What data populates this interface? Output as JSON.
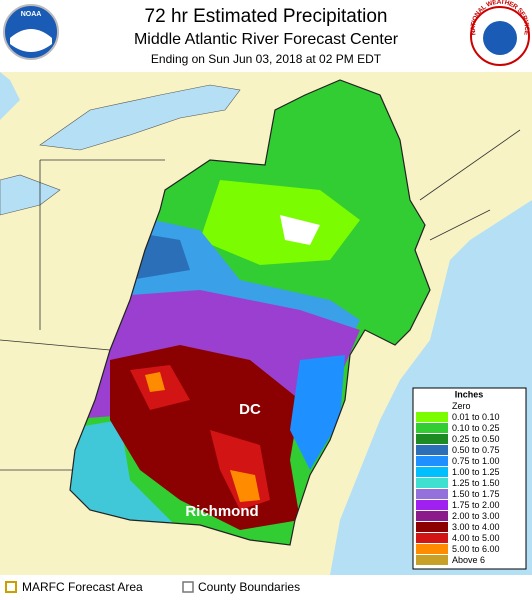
{
  "header": {
    "title": "72 hr Estimated Precipitation",
    "subtitle": "Middle Atlantic River Forecast Center",
    "period": "Ending on Sun Jun 03, 2018 at 02 PM EDT"
  },
  "logos": {
    "left": "NOAA",
    "right": "NATIONAL WEATHER SERVICE"
  },
  "map": {
    "labels": [
      "DC",
      "Richmond"
    ]
  },
  "legend": {
    "title": "Inches",
    "entries": [
      {
        "label": "Zero",
        "color": "#ffffff"
      },
      {
        "label": "0.01 to 0.10",
        "color": "#7cfc00"
      },
      {
        "label": "0.10 to 0.25",
        "color": "#32cd32"
      },
      {
        "label": "0.25 to 0.50",
        "color": "#1e8b22"
      },
      {
        "label": "0.50 to 0.75",
        "color": "#2a6fb8"
      },
      {
        "label": "0.75 to 1.00",
        "color": "#1e90ff"
      },
      {
        "label": "1.00 to 1.25",
        "color": "#00bfff"
      },
      {
        "label": "1.25 to 1.50",
        "color": "#40e0d0"
      },
      {
        "label": "1.50 to 1.75",
        "color": "#9370db"
      },
      {
        "label": "1.75 to 2.00",
        "color": "#a020f0"
      },
      {
        "label": "2.00 to 3.00",
        "color": "#8b1a8b"
      },
      {
        "label": "3.00 to 4.00",
        "color": "#8b0000"
      },
      {
        "label": "4.00 to 5.00",
        "color": "#d21414"
      },
      {
        "label": "5.00 to 6.00",
        "color": "#ff8c00"
      },
      {
        "label": "Above 6",
        "color": "#c8a028"
      }
    ]
  },
  "footer": {
    "items": [
      "MARFC Forecast Area",
      "County Boundaries"
    ]
  }
}
